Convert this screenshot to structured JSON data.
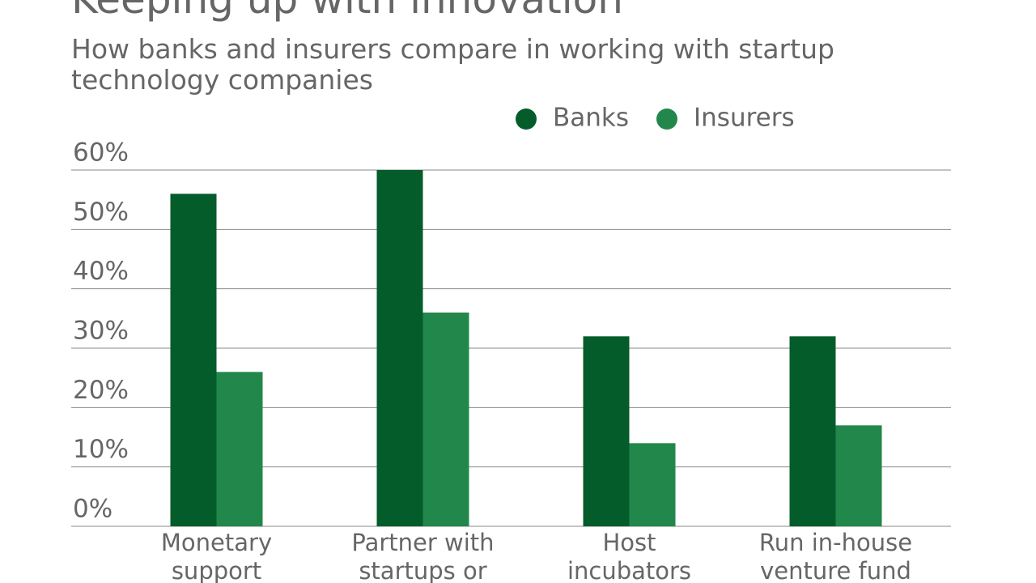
{
  "chart_data": {
    "type": "bar",
    "title": "Keeping up with innovation",
    "subtitle": "How banks and insurers compare in working with startup technology companies",
    "categories": [
      "Monetary support",
      "Partner with startups or",
      "Host incubators",
      "Run in-house venture fund"
    ],
    "series": [
      {
        "name": "Banks",
        "color": "#045c2b",
        "values": [
          56,
          60,
          32,
          32
        ]
      },
      {
        "name": "Insurers",
        "color": "#22874a",
        "values": [
          26,
          36,
          14,
          17
        ]
      }
    ],
    "ylim": [
      0,
      60
    ],
    "yticks": [
      {
        "value": 0,
        "label": "0%"
      },
      {
        "value": 10,
        "label": "10%"
      },
      {
        "value": 20,
        "label": "20%"
      },
      {
        "value": 30,
        "label": "30%"
      },
      {
        "value": 40,
        "label": "40%"
      },
      {
        "value": 50,
        "label": "50%"
      },
      {
        "value": 60,
        "label": "60%"
      }
    ],
    "grid": true
  }
}
